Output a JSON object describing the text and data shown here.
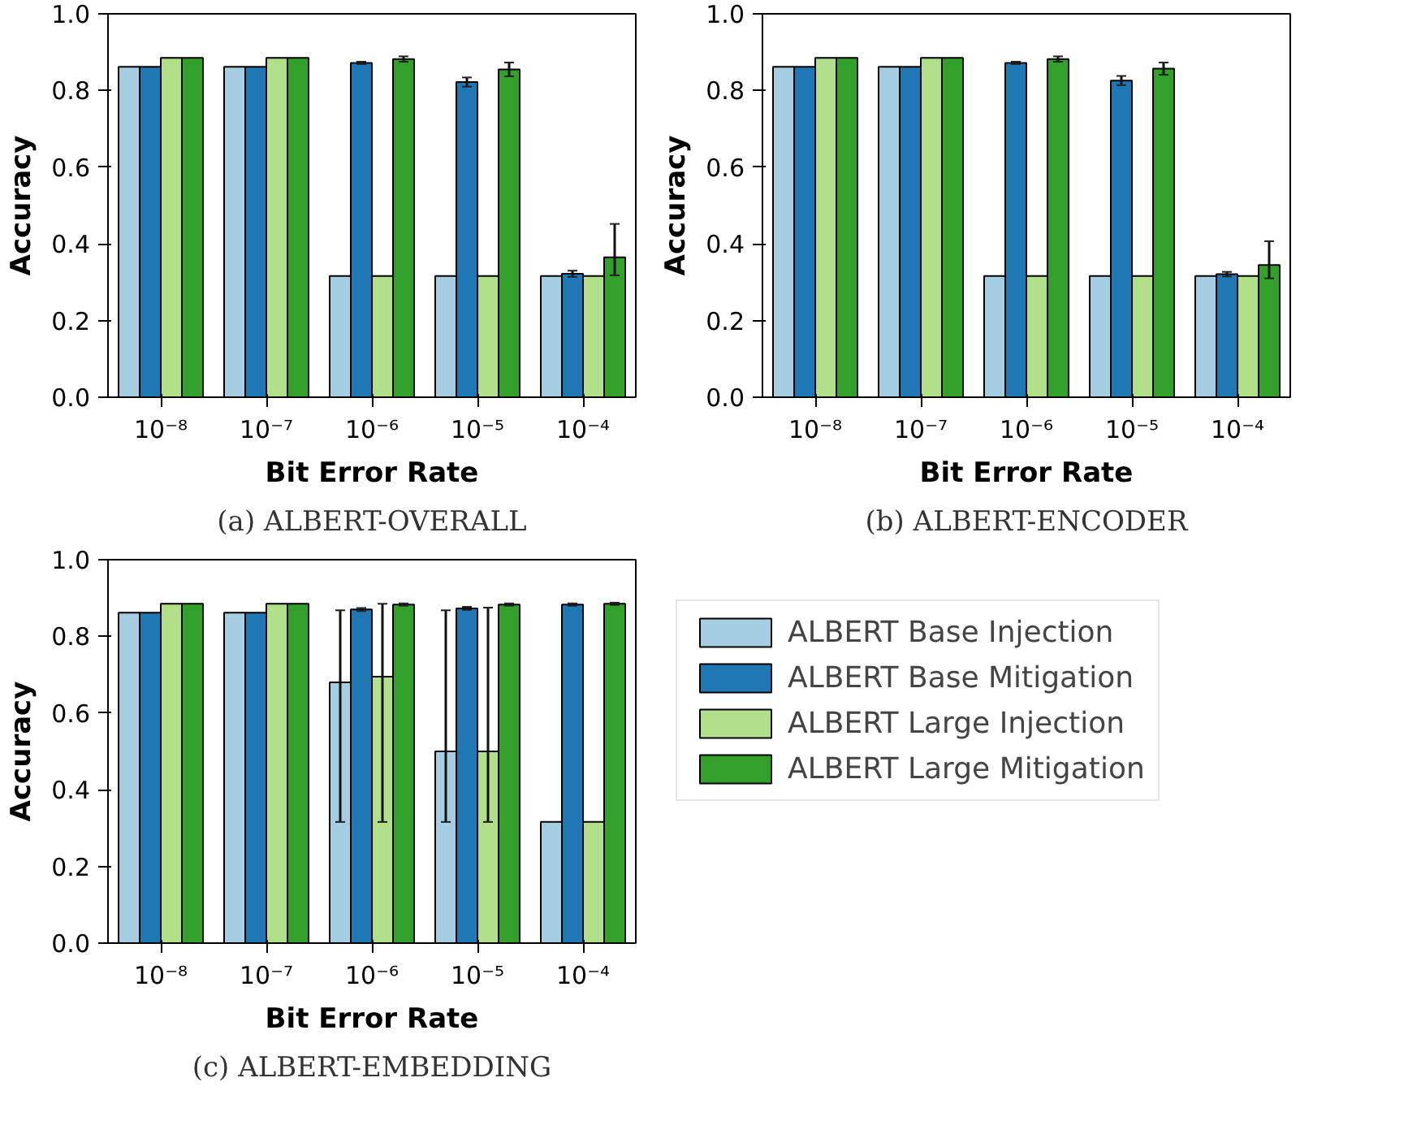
{
  "chart_data": [
    {
      "type": "bar",
      "xlabel": "Bit Error Rate",
      "ylabel": "Accuracy",
      "annotations": [
        "(a) ALBERT-OVERALL"
      ],
      "categories": [
        "10⁻⁸",
        "10⁻⁷",
        "10⁻⁶",
        "10⁻⁵",
        "10⁻⁴"
      ],
      "ylim": [
        0,
        1
      ],
      "yticks": [
        {
          "value": 0,
          "label": "0.0"
        },
        {
          "value": 0.2,
          "label": "0.2"
        },
        {
          "value": 0.4,
          "label": "0.4"
        },
        {
          "value": 0.6,
          "label": "0.6"
        },
        {
          "value": 0.8,
          "label": "0.8"
        },
        {
          "value": 1,
          "label": "1.0"
        }
      ],
      "grid": false,
      "legend": false,
      "series": [
        {
          "color": "#a6cee3",
          "values": [
            0.862,
            0.862,
            0.316,
            0.316,
            0.316
          ]
        },
        {
          "color": "#1f78b4",
          "values": [
            0.862,
            0.862,
            0.872,
            0.822,
            0.322
          ],
          "errors": [
            null,
            null,
            0.003,
            0.012,
            0.008
          ]
        },
        {
          "color": "#b2df8a",
          "values": [
            0.885,
            0.885,
            0.316,
            0.316,
            0.316
          ]
        },
        {
          "color": "#33a02c",
          "values": [
            0.885,
            0.885,
            0.882,
            0.855,
            0.365
          ],
          "errors": [
            null,
            null,
            0.007,
            0.018,
            [
              0.318,
              0.452
            ]
          ]
        }
      ]
    },
    {
      "type": "bar",
      "xlabel": "Bit Error Rate",
      "ylabel": "Accuracy",
      "annotations": [
        "(b) ALBERT-ENCODER"
      ],
      "categories": [
        "10⁻⁸",
        "10⁻⁷",
        "10⁻⁶",
        "10⁻⁵",
        "10⁻⁴"
      ],
      "ylim": [
        0,
        1
      ],
      "yticks": [
        {
          "value": 0,
          "label": "0.0"
        },
        {
          "value": 0.2,
          "label": "0.2"
        },
        {
          "value": 0.4,
          "label": "0.4"
        },
        {
          "value": 0.6,
          "label": "0.6"
        },
        {
          "value": 0.8,
          "label": "0.8"
        },
        {
          "value": 1,
          "label": "1.0"
        }
      ],
      "grid": false,
      "legend": false,
      "series": [
        {
          "color": "#a6cee3",
          "values": [
            0.862,
            0.862,
            0.316,
            0.316,
            0.316
          ]
        },
        {
          "color": "#1f78b4",
          "values": [
            0.862,
            0.862,
            0.872,
            0.826,
            0.321
          ],
          "errors": [
            null,
            null,
            0.003,
            0.012,
            0.006
          ]
        },
        {
          "color": "#b2df8a",
          "values": [
            0.885,
            0.885,
            0.316,
            0.316,
            0.316
          ]
        },
        {
          "color": "#33a02c",
          "values": [
            0.885,
            0.885,
            0.882,
            0.857,
            0.345
          ],
          "errors": [
            null,
            null,
            0.007,
            0.016,
            [
              0.31,
              0.407
            ]
          ]
        }
      ]
    },
    {
      "type": "bar",
      "xlabel": "Bit Error Rate",
      "ylabel": "Accuracy",
      "annotations": [
        "(c) ALBERT-EMBEDDING"
      ],
      "categories": [
        "10⁻⁸",
        "10⁻⁷",
        "10⁻⁶",
        "10⁻⁵",
        "10⁻⁴"
      ],
      "ylim": [
        0,
        1
      ],
      "yticks": [
        {
          "value": 0,
          "label": "0.0"
        },
        {
          "value": 0.2,
          "label": "0.2"
        },
        {
          "value": 0.4,
          "label": "0.4"
        },
        {
          "value": 0.6,
          "label": "0.6"
        },
        {
          "value": 0.8,
          "label": "0.8"
        },
        {
          "value": 1,
          "label": "1.0"
        }
      ],
      "grid": false,
      "legend": "right",
      "series": [
        {
          "name": "ALBERT Base Injection",
          "color": "#a6cee3",
          "values": [
            0.862,
            0.862,
            0.68,
            0.5,
            0.316
          ],
          "errors": [
            null,
            null,
            [
              0.316,
              0.868
            ],
            [
              0.316,
              0.868
            ],
            null
          ]
        },
        {
          "name": "ALBERT Base Mitigation",
          "color": "#1f78b4",
          "values": [
            0.862,
            0.862,
            0.87,
            0.873,
            0.883
          ],
          "errors": [
            null,
            null,
            0.004,
            0.004,
            0.003
          ]
        },
        {
          "name": "ALBERT Large Injection",
          "color": "#b2df8a",
          "values": [
            0.885,
            0.885,
            0.695,
            0.5,
            0.316
          ],
          "errors": [
            null,
            null,
            [
              0.316,
              0.885
            ],
            [
              0.316,
              0.875
            ],
            null
          ]
        },
        {
          "name": "ALBERT Large Mitigation",
          "color": "#33a02c",
          "values": [
            0.885,
            0.885,
            0.883,
            0.883,
            0.885
          ],
          "errors": [
            null,
            null,
            0.003,
            0.003,
            0.003
          ]
        }
      ]
    }
  ]
}
